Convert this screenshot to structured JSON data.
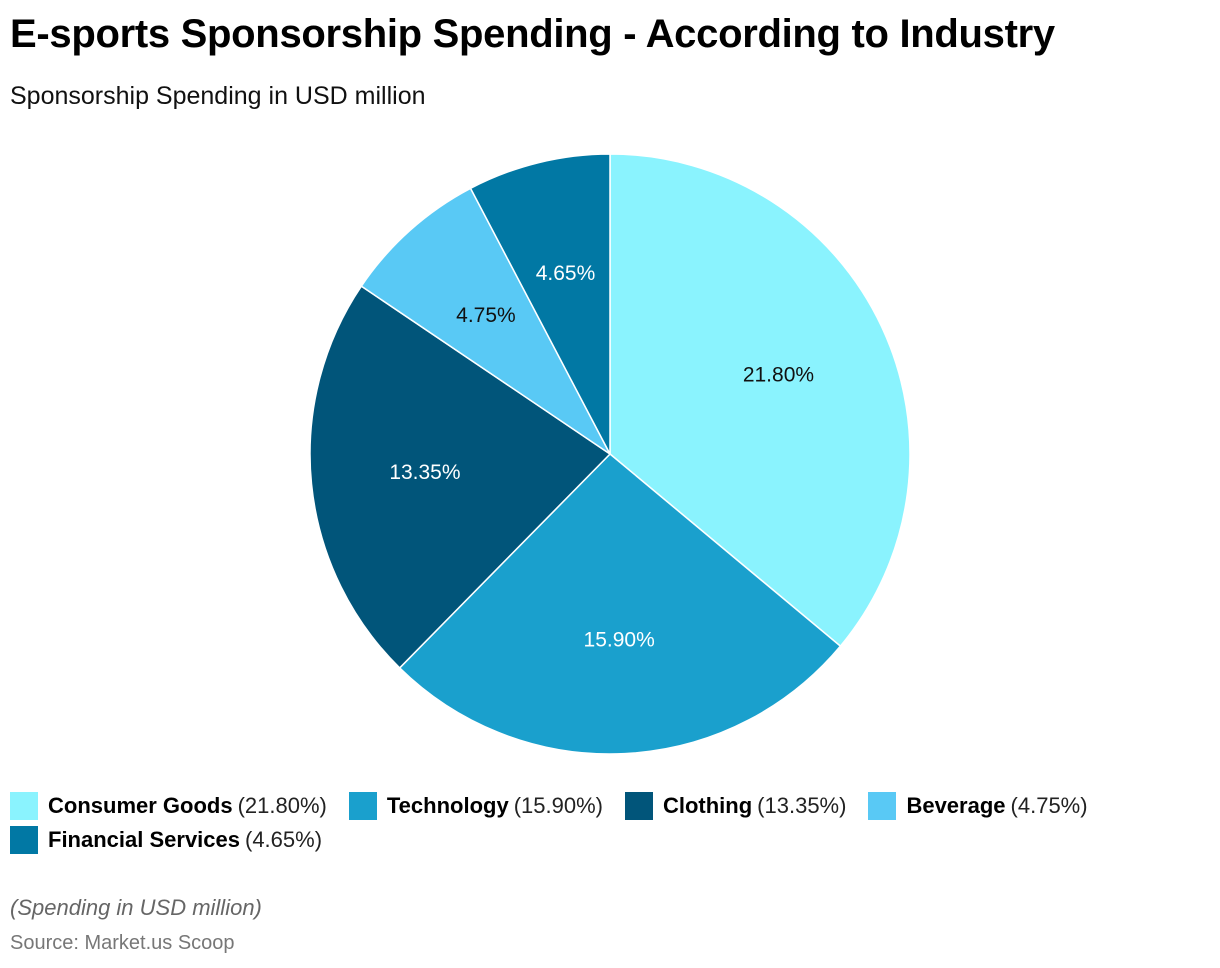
{
  "chart_data": {
    "type": "pie",
    "title": "E-sports Sponsorship Spending - According to Industry",
    "subtitle": "Sponsorship Spending in USD million",
    "start_angle": "top, clockwise",
    "legend_position": "bottom-left",
    "slices": [
      {
        "name": "Consumer Goods",
        "value": 21.8,
        "label": "21.80%",
        "pct_text": "(21.80%)",
        "color": "#8AF3FE",
        "label_color": "#111111"
      },
      {
        "name": "Technology",
        "value": 15.9,
        "label": "15.90%",
        "pct_text": "(15.90%)",
        "color": "#1AA0CD",
        "label_color": "#FFFFFF"
      },
      {
        "name": "Clothing",
        "value": 13.35,
        "label": "13.35%",
        "pct_text": "(13.35%)",
        "color": "#01557A",
        "label_color": "#FFFFFF"
      },
      {
        "name": "Beverage",
        "value": 4.75,
        "label": "4.75%",
        "pct_text": "(4.75%)",
        "color": "#59C9F5",
        "label_color": "#111111"
      },
      {
        "name": "Financial Services",
        "value": 4.65,
        "label": "4.65%",
        "pct_text": "(4.65%)",
        "color": "#0178A4",
        "label_color": "#FFFFFF"
      }
    ]
  },
  "footer": {
    "note": "(Spending in USD million)",
    "source": "Source: Market.us Scoop"
  }
}
